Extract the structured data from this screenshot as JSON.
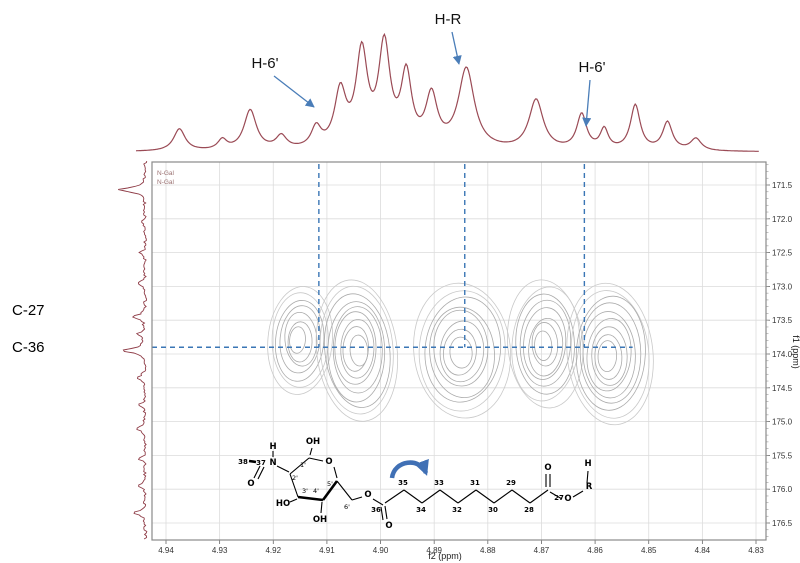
{
  "chart_data": {
    "type": "heatmap",
    "subtype": "2D NMR correlation region (contour cross-peaks) with 1D proton trace on top and 1D carbon trace on left",
    "x_axis": {
      "label": "f2 (ppm)",
      "ticks": [
        4.94,
        4.93,
        4.92,
        4.91,
        4.9,
        4.89,
        4.88,
        4.87,
        4.86,
        4.85,
        4.84,
        4.83
      ],
      "reversed": true
    },
    "y_axis": {
      "label": "f1 (ppm)",
      "ticks": [
        171.5,
        172.0,
        172.5,
        173.0,
        173.5,
        174.0,
        174.5,
        175.0,
        175.5,
        176.0,
        176.5
      ],
      "reversed": false
    },
    "cross_peaks": [
      {
        "f2": 4.915,
        "f1": 173.8,
        "rx": 0.006,
        "ry": 0.8,
        "rings": 7
      },
      {
        "f2": 4.9044,
        "f1": 173.95,
        "rx": 0.0075,
        "ry": 1.05,
        "rings": 9
      },
      {
        "f2": 4.8848,
        "f1": 173.95,
        "rx": 0.009,
        "ry": 1.0,
        "rings": 8
      },
      {
        "f2": 4.8693,
        "f1": 173.85,
        "rx": 0.007,
        "ry": 0.95,
        "rings": 8
      },
      {
        "f2": 4.8572,
        "f1": 174.0,
        "rx": 0.008,
        "ry": 1.05,
        "rings": 9
      }
    ],
    "annotations": {
      "top": [
        {
          "label": "H-6'",
          "f2": 4.9115
        },
        {
          "label": "H-R",
          "f2": 4.8843
        },
        {
          "label": "H-6'",
          "f2": 4.862
        }
      ],
      "left": [
        {
          "label": "C-27",
          "f1": 173.35
        },
        {
          "label": "C-36",
          "f1": 173.9
        }
      ],
      "inset": [
        "N-Gal",
        "N-Gal"
      ],
      "dashed_vertical_f2": [
        4.9115,
        4.8843,
        4.862
      ],
      "dashed_horizontal_f1": 173.9,
      "dashed_horizontal_f2_end": 4.853
    },
    "proton_trace_peaks": [
      [
        4.9375,
        0.22,
        0.0013
      ],
      [
        4.9295,
        0.1,
        0.001
      ],
      [
        4.9243,
        0.4,
        0.0014
      ],
      [
        4.9185,
        0.13,
        0.0012
      ],
      [
        4.912,
        0.2,
        0.0011
      ],
      [
        4.9075,
        0.55,
        0.0013
      ],
      [
        4.9035,
        0.93,
        0.0013
      ],
      [
        4.8993,
        1.0,
        0.0013
      ],
      [
        4.8952,
        0.7,
        0.0012
      ],
      [
        4.8905,
        0.5,
        0.0013
      ],
      [
        4.884,
        0.8,
        0.0018
      ],
      [
        4.871,
        0.5,
        0.0016
      ],
      [
        4.8625,
        0.35,
        0.0011
      ],
      [
        4.8583,
        0.2,
        0.0009
      ],
      [
        4.8525,
        0.45,
        0.0011
      ],
      [
        4.8465,
        0.28,
        0.0011
      ],
      [
        4.8412,
        0.12,
        0.0012
      ]
    ],
    "carbon_trace_peaks": [
      [
        171.57,
        26,
        0.04
      ],
      [
        172.05,
        5,
        0.03
      ],
      [
        172.5,
        5,
        0.03
      ],
      [
        172.95,
        7,
        0.035
      ],
      [
        173.45,
        12,
        0.035
      ],
      [
        173.7,
        7,
        0.03
      ],
      [
        173.95,
        22,
        0.04
      ],
      [
        174.35,
        9,
        0.035
      ],
      [
        174.75,
        6,
        0.03
      ],
      [
        175.1,
        9,
        0.035
      ],
      [
        175.55,
        6,
        0.03
      ],
      [
        175.95,
        7,
        0.03
      ],
      [
        176.35,
        11,
        0.035
      ]
    ]
  },
  "structure": {
    "labels": {
      "c38": "38",
      "c37": "37",
      "n": "N",
      "nh": "H",
      "acetyl_o": "O",
      "oh_1": "OH",
      "ring_o": "O",
      "ho_3": "HO",
      "oh_4": "OH",
      "ester_o_6": "O",
      "c36": "36",
      "c36_o": "O",
      "c35": "35",
      "c34": "34",
      "c33": "33",
      "c32": "32",
      "c31": "31",
      "c30": "30",
      "c29": "29",
      "c28": "28",
      "c27": "27",
      "c27_o": "O",
      "ester_o_27": "O",
      "r": "R",
      "r_h": "H",
      "pos_1": "1'",
      "pos_2": "2'",
      "pos_3": "3'",
      "pos_4": "4'",
      "pos_5": "5'",
      "pos_6": "6'"
    }
  }
}
